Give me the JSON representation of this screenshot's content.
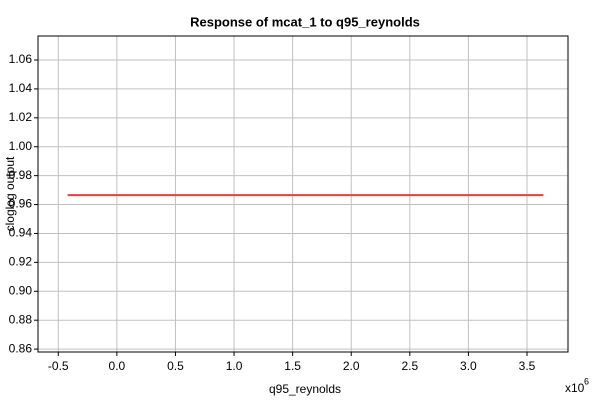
{
  "chart_data": {
    "type": "line",
    "title": "Response of mcat_1 to q95_reynolds",
    "x_label": "q95_reynolds",
    "y_label": "cloglog output",
    "x_scale_base": "x10",
    "x_scale_exponent": "6",
    "xlim": [
      -0.673,
      3.85
    ],
    "ylim": [
      0.858,
      1.0766
    ],
    "xticks": [
      -0.5,
      {
        "value": 0,
        "label": "0.0"
      },
      0.5,
      {
        "value": 1,
        "label": "1.0"
      },
      1.5,
      {
        "value": 2,
        "label": "2.0"
      },
      2.5,
      {
        "value": 3,
        "label": "3.0"
      },
      3.5
    ],
    "yticks": [
      0.86,
      0.88,
      {
        "value": 0.9,
        "label": "0.90"
      },
      0.92,
      0.94,
      0.96,
      0.98,
      {
        "value": 1,
        "label": "1.00"
      },
      1.02,
      1.04,
      1.06
    ],
    "grid": true,
    "x": [
      -0.42,
      3.64
    ],
    "series": [
      {
        "color": "#e8413c",
        "values": [
          0.9665,
          0.9665
        ]
      }
    ]
  }
}
